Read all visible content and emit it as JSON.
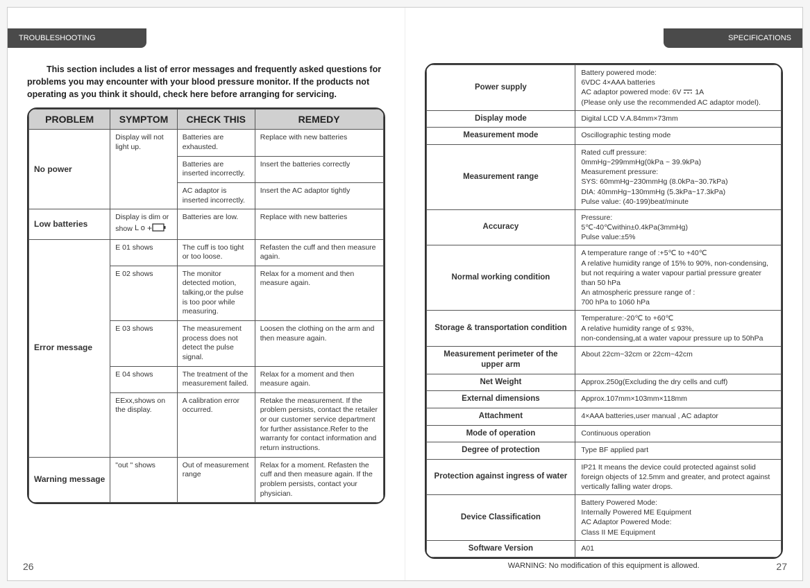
{
  "colors": {
    "tab_bg": "#4a4a4a",
    "tab_text": "#ffffff",
    "th_bg": "#d0d0d0",
    "border": "#555555",
    "page_bg": "#ffffff",
    "text": "#333333"
  },
  "left": {
    "tab": "TROUBLESHOOTING",
    "intro": "This section includes a list of error messages and frequently asked questions for problems you may encounter with your blood pressure monitor. If the products not operating as you think it should, check here before arranging for servicing.",
    "table": {
      "headers": [
        "PROBLEM",
        "SYMPTOM",
        "CHECK THIS",
        "REMEDY"
      ],
      "rows": [
        {
          "problem": "No power",
          "problem_rowspan": 3,
          "symptom": "Display will not light up.",
          "symptom_rowspan": 3,
          "check": "Batteries are exhausted.",
          "remedy": "Replace with new batteries"
        },
        {
          "check": "Batteries are inserted incorrectly.",
          "remedy": "Insert the batteries correctly"
        },
        {
          "check": "AC adaptor is inserted incorrectly.",
          "remedy": "Insert the AC adaptor tightly"
        },
        {
          "problem": "Low batteries",
          "symptom_html": true,
          "symptom": "Display is dim or show",
          "check": "Batteries are low.",
          "remedy": "Replace with new batteries"
        },
        {
          "problem": "Error message",
          "problem_rowspan": 5,
          "symptom": "E 01 shows",
          "check": "The cuff is too tight or too loose.",
          "remedy": "Refasten the cuff and then measure again."
        },
        {
          "symptom": "E 02 shows",
          "check": "The monitor detected motion, talking,or the pulse is too poor while measuring.",
          "remedy": "Relax for a moment and then measure again."
        },
        {
          "symptom": "E 03 shows",
          "check": "The measurement process does not detect the pulse signal.",
          "remedy": "Loosen the clothing on the arm and then measure again."
        },
        {
          "symptom": "E 04 shows",
          "check": "The treatment of the measurement failed.",
          "remedy": "Relax for a moment and then measure again."
        },
        {
          "symptom": "EExx,shows on the display.",
          "check": "A calibration error occurred.",
          "remedy": "Retake the measurement. If the problem persists, contact the retailer or our customer service department for further assistance.Refer to the warranty for contact information and return instructions."
        },
        {
          "problem": "Warning message",
          "symptom": "\"out \" shows",
          "check": "Out of measurement range",
          "remedy": "Relax for a moment. Refasten the cuff and then measure again. If the problem persists, contact your physician."
        }
      ]
    },
    "page_num": "26"
  },
  "right": {
    "tab": "SPECIFICATIONS",
    "spec_rows": [
      {
        "label": "Power supply",
        "value_html": true,
        "value": "Battery powered mode:\n6VDC 4×AAA batteries\nAC adaptor powered mode: 6V ⎓ 1A\n(Please only use the recommended  AC adaptor model)."
      },
      {
        "label": "Display mode",
        "value": "Digital LCD   V.A.84mm×73mm"
      },
      {
        "label": "Measurement mode",
        "value": "Oscillographic testing mode"
      },
      {
        "label": "Measurement range",
        "value": "Rated cuff pressure:\n0mmHg~299mmHg(0kPa ~ 39.9kPa)\nMeasurement pressure:\nSYS: 60mmHg~230mmHg (8.0kPa~30.7kPa)\nDIA: 40mmHg~130mmHg (5.3kPa~17.3kPa)\nPulse value: (40-199)beat/minute"
      },
      {
        "label": "Accuracy",
        "value": "Pressure:\n5℃-40℃within±0.4kPa(3mmHg)\nPulse value:±5%"
      },
      {
        "label": "Normal working condition",
        "value": "A temperature range of :+5℃ to +40℃\nA relative humidity range of 15% to 90%, non-condensing, but not requiring a water vapour partial pressure greater than 50 hPa\nAn atmospheric pressure range of :\n700 hPa to 1060 hPa"
      },
      {
        "label": "Storage & transportation condition",
        "value": "Temperature:-20℃ to +60℃\nA relative humidity range of ≤ 93%,\nnon-condensing,at a water vapour pressure up to 50hPa"
      },
      {
        "label": "Measurement perimeter of the upper arm",
        "value": "About 22cm~32cm or 22cm~42cm"
      },
      {
        "label": "Net Weight",
        "value": "Approx.250g(Excluding the dry cells and cuff)"
      },
      {
        "label": "External dimensions",
        "value": "Approx.107mm×103mm×118mm"
      },
      {
        "label": "Attachment",
        "value": "4×AAA  batteries,user manual , AC adaptor"
      },
      {
        "label": "Mode of operation",
        "value": "Continuous operation"
      },
      {
        "label": "Degree of protection",
        "value": "Type BF applied part"
      },
      {
        "label": "Protection against ingress of water",
        "value": "IP21 It means the device could protected against solid foreign objects of 12.5mm and greater, and protect against vertically falling water drops."
      },
      {
        "label": "Device Classification",
        "value": "Battery Powered Mode:\nInternally Powered ME Equipment\nAC Adaptor Powered Mode:\nClass II ME Equipment"
      },
      {
        "label": "Software Version",
        "value": "A01"
      }
    ],
    "warning": "WARNING: No modification of this equipment is allowed.",
    "page_num": "27"
  }
}
